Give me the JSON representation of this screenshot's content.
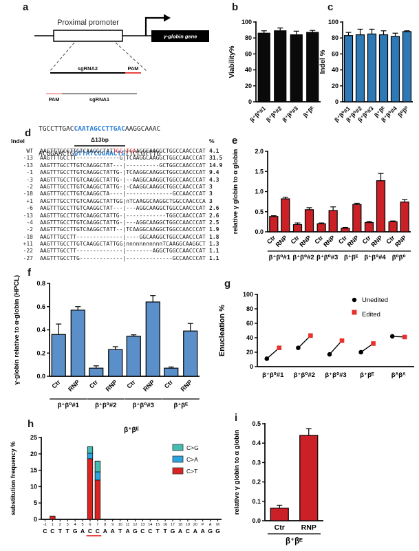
{
  "colors": {
    "seq_blue": "#2a7fd4",
    "pam_red": "#e8433f",
    "black_bar": "#0a0a0a",
    "blue_bar": "#2e79b5",
    "red_bar": "#cb2026"
  },
  "panel_a": {
    "label": "a",
    "promoter_label": "Proximal promoter",
    "gene_label": "γ-globin gene",
    "sgRNA2_label": "sgRNA2",
    "sgRNA1_label": "sgRNA1",
    "pam_top_label": "PAM",
    "pam_bottom_label": "PAM",
    "seq_top": {
      "pre": "TGCCTTGAC",
      "target": "CAATAGCCTTGAC",
      "post": "AAGGCAAAC"
    },
    "seq_bottom": {
      "pre": "ACGGAACTG",
      "target": "GTTATCGGAACTG",
      "post": "TTCCGTTTG"
    }
  },
  "panel_d": {
    "label": "d",
    "header": {
      "indel": "Indel",
      "region": "Δ13bp",
      "pct": "%"
    },
    "rows": [
      {
        "indel": "WT",
        "seq": "AAGTTTGCCTTGTCAAGGCTAT[TGG]|[TCA]AGGCAAGGCTGGCCAACCCAT",
        "pct": "4.1"
      },
      {
        "indel": "-13",
        "seq": "AAGTTTGCCTT-------------G|TCAAGGCAAGGCTGGCCAACCCAT",
        "pct": "31.5"
      },
      {
        "indel": "-13",
        "seq": "AAGTTTGCCTTGTCAAGGCTAT---|----------GCTGGCCAACCCAT",
        "pct": "14.9"
      },
      {
        "indel": "-1",
        "seq": "AAGTTTGCCTTGTCAAGGCTATTG-|TCAAGGCAAGGCTGGCCAACCCAT",
        "pct": "9.4"
      },
      {
        "indel": "-3",
        "seq": "AAGTTTGCCTTGTCAAGGCTATTG-|--AAGGCAAGGCTGGCCAACCCAT",
        "pct": "4.3"
      },
      {
        "indel": "-2",
        "seq": "AAGTTTGCCTTGTCAAGGCTATTG-|-CAAGGCAAGGCTGGCCAACCCAT",
        "pct": "3"
      },
      {
        "indel": "-18",
        "seq": "AAGTTTGCCTTGTCAAGGCTA----|--------------GCCAACCCAT",
        "pct": "3"
      },
      {
        "indel": "+1",
        "seq": "AAGTTTGCCTTGTCAAGGCTATTGG|nTCAAGGCAAGGCTGGCCAACCCA",
        "pct": "3"
      },
      {
        "indel": "-6",
        "seq": "AAGTTTGCCTTGTCAAGGCTAT---|---AGGCAAGGCTGGCCAACCCAT",
        "pct": "2.6"
      },
      {
        "indel": "-13",
        "seq": "AAGTTTGCCTTGTCAAGGCTATTG-|------------TGGCCAACCCAT",
        "pct": "2.6"
      },
      {
        "indel": "-4",
        "seq": "AAGTTTGCCTTGTCAAGGCTATTG-|---AGGCAAGGCTGGCCAACCCAT",
        "pct": "2.5"
      },
      {
        "indel": "-2",
        "seq": "AAGTTTGCCTTGTCAAGGCTATT--|TCAAGGCAAGGCTGGCCAACCCAT",
        "pct": "1.9"
      },
      {
        "indel": "-18",
        "seq": "AAGTTTGCCTT--------------|----GGCAAGGCTGGCCAACCCAT",
        "pct": "1.8"
      },
      {
        "indel": "+11",
        "seq": "AAGTTTGCCTTGTCAAGGCTATTGG|nnnnnnnnnnnTCAAGGCAAGGCT",
        "pct": "1.3"
      },
      {
        "indel": "-22",
        "seq": "AAGTTTGCCTT--------------|--------AGGCTGGCCAACCCAT",
        "pct": "1.1"
      },
      {
        "indel": "-27",
        "seq": "AAGTTTGCCTTG-------------|--------------GCCAACCCAT",
        "pct": "1.1"
      }
    ]
  },
  "chart_data": [
    {
      "id": "b",
      "type": "bar",
      "panel_label": "b",
      "ylabel": "Viability%",
      "ylim": [
        0,
        100
      ],
      "ytick_step": 20,
      "grid": false,
      "categories": [
        "β⁺β⁰#1",
        "β⁺β⁰#2",
        "β⁺β⁰#3",
        "β⁺βᴱ"
      ],
      "values": [
        86,
        89,
        84,
        87
      ],
      "errors": [
        3,
        3.5,
        4.5,
        2.5
      ],
      "bar_color": "#0a0a0a"
    },
    {
      "id": "c",
      "type": "bar",
      "panel_label": "c",
      "ylabel": "Indel %",
      "ylim": [
        0,
        100
      ],
      "ytick_step": 20,
      "grid": false,
      "categories": [
        "β⁺β⁰#1",
        "β⁺β⁰#2",
        "β⁺β⁰#3",
        "β⁺βᴱ",
        "β⁺β⁰#4",
        "β⁰β⁰"
      ],
      "values": [
        83,
        84,
        85,
        84,
        82,
        88
      ],
      "errors": [
        4,
        7,
        6,
        5,
        4,
        1
      ],
      "bar_color": "#2e79b5"
    },
    {
      "id": "e",
      "type": "paired-bar",
      "panel_label": "e",
      "ylabel": "relative γ globin to α globin",
      "ylim": [
        0,
        2.0
      ],
      "ytick_step": 0.5,
      "pair_labels": [
        "Ctr",
        "RNP"
      ],
      "groups": [
        "β⁺β⁰#1",
        "β⁺β⁰#2",
        "β⁺β⁰#3",
        "β⁺βᴱ",
        "β⁺β⁰#4",
        "β⁰β⁰"
      ],
      "values": [
        [
          0.38,
          0.82
        ],
        [
          0.18,
          0.55
        ],
        [
          0.2,
          0.53
        ],
        [
          0.09,
          0.68
        ],
        [
          0.23,
          1.27
        ],
        [
          0.25,
          0.74
        ]
      ],
      "errors": [
        [
          0.02,
          0.04
        ],
        [
          0.04,
          0.05
        ],
        [
          0.02,
          0.09
        ],
        [
          0.02,
          0.03
        ],
        [
          0.03,
          0.18
        ],
        [
          0.02,
          0.06
        ]
      ],
      "bar_color": "#cb2026"
    },
    {
      "id": "f",
      "type": "paired-bar",
      "panel_label": "f",
      "ylabel": "γ-globin relative to α-globin (HPCL)",
      "ylim": [
        0,
        0.8
      ],
      "ytick_step": 0.2,
      "pair_labels": [
        "Ctr",
        "RNP"
      ],
      "groups": [
        "β⁺β⁰#1",
        "β⁺β⁰#2",
        "β⁺β⁰#3",
        "β⁺βᴱ"
      ],
      "values": [
        [
          0.36,
          0.57
        ],
        [
          0.07,
          0.23
        ],
        [
          0.345,
          0.64
        ],
        [
          0.07,
          0.39
        ]
      ],
      "errors": [
        [
          0.09,
          0.03
        ],
        [
          0.02,
          0.025
        ],
        [
          0.012,
          0.055
        ],
        [
          0.01,
          0.065
        ]
      ],
      "bar_color": "#5b8fc9"
    },
    {
      "id": "g",
      "type": "paired-scatter",
      "panel_label": "g",
      "ylabel": "Enucleation %",
      "ylim": [
        0,
        100
      ],
      "ytick_step": 20,
      "categories": [
        "β⁺β⁰#1",
        "β⁺β⁰#2",
        "β⁺β⁰#3",
        "β⁺βᴱ",
        "βᴬβᴬ"
      ],
      "series": [
        {
          "name": "Unedited",
          "marker": "circle",
          "color": "#000000",
          "values": [
            11,
            26,
            17,
            20,
            42
          ]
        },
        {
          "name": "Edited",
          "marker": "square",
          "color": "#e8312f",
          "values": [
            26,
            43,
            36,
            32,
            41
          ]
        }
      ],
      "legend_position": "top-right"
    },
    {
      "id": "h",
      "type": "stacked-bar",
      "panel_label": "h",
      "title": "β⁺βᴱ",
      "ylabel": "substitution frequency %",
      "ylim": [
        0,
        25
      ],
      "ytick_step": 5,
      "positions": [
        "-1",
        "1",
        "2",
        "3",
        "4",
        "5",
        "6",
        "7",
        "8",
        "9",
        "10",
        "11",
        "12",
        "13",
        "14",
        "15",
        "16",
        "17",
        "18",
        "19",
        "20",
        "P",
        "A",
        "M"
      ],
      "letters": [
        "C",
        "C",
        "T",
        "T",
        "G",
        "A",
        "C",
        "C",
        "A",
        "A",
        "T",
        "A",
        "G",
        "C",
        "C",
        "T",
        "T",
        "G",
        "A",
        "C",
        "A",
        "A",
        "G",
        "G"
      ],
      "series": [
        {
          "name": "C>T",
          "color": "#db2422",
          "values": [
            0,
            1,
            0,
            0,
            0,
            0,
            18.5,
            12,
            0,
            0,
            0,
            0,
            0,
            0,
            0,
            0,
            0,
            0,
            0,
            0,
            0,
            0,
            0,
            0
          ]
        },
        {
          "name": "C>A",
          "color": "#2ba4e0",
          "values": [
            0,
            0,
            0,
            0,
            0,
            0,
            1.7,
            2.5,
            0,
            0,
            0,
            0,
            0,
            0,
            0,
            0,
            0,
            0,
            0,
            0,
            0,
            0,
            0,
            0
          ]
        },
        {
          "name": "C>G",
          "color": "#45bdb2",
          "values": [
            0,
            0,
            0,
            0,
            0,
            0,
            2.0,
            3.3,
            0,
            0,
            0,
            0,
            0,
            0,
            0,
            0,
            0,
            0,
            0,
            0,
            0,
            0,
            0,
            0
          ]
        }
      ],
      "legend_order": [
        "C>G",
        "C>A",
        "C>T"
      ],
      "underline_positions": [
        6,
        7
      ]
    },
    {
      "id": "i",
      "type": "paired-bar-single",
      "panel_label": "i",
      "ylabel": "relative γ globin to α globin",
      "ylim": [
        0,
        0.5
      ],
      "ytick_step": 0.1,
      "categories": [
        "Ctr",
        "RNP"
      ],
      "values": [
        0.065,
        0.44
      ],
      "errors": [
        0.015,
        0.035
      ],
      "group_label": "β⁺βᴱ",
      "bar_color": "#cb2026"
    }
  ]
}
